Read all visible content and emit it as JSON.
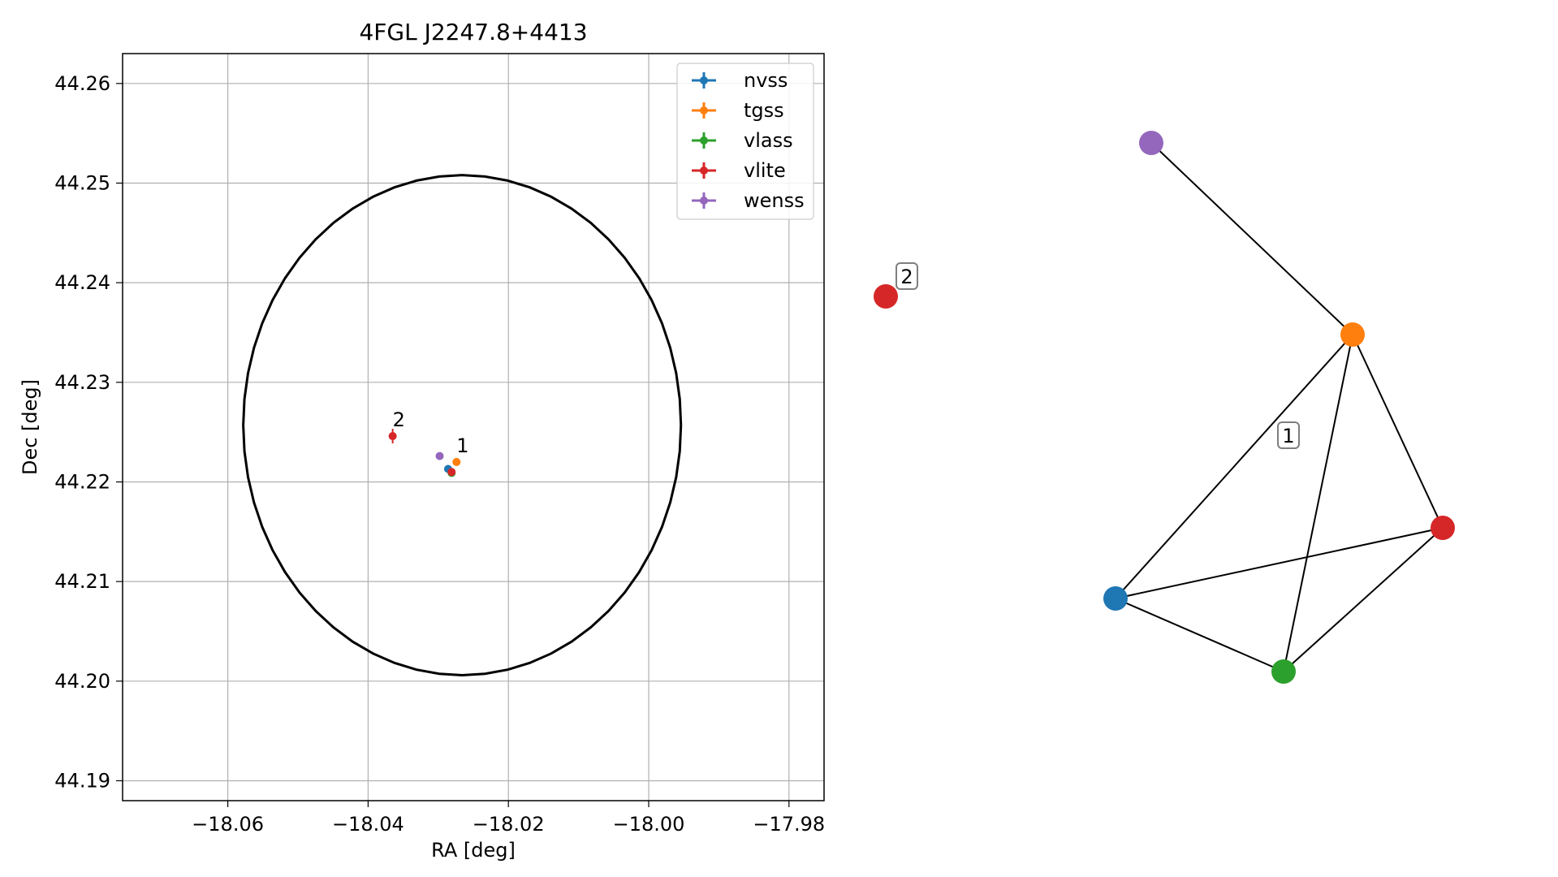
{
  "chart_data": [
    {
      "type": "scatter",
      "title": "4FGL J2247.8+4413",
      "xlabel": "RA [deg]",
      "ylabel": "Dec [deg]",
      "xlim": [
        -18.075,
        -17.975
      ],
      "ylim": [
        44.188,
        44.263
      ],
      "xticks": [
        -18.06,
        -18.04,
        -18.02,
        -18.0,
        -17.98
      ],
      "xtick_labels": [
        "−18.06",
        "−18.04",
        "−18.02",
        "−18.00",
        "−17.98"
      ],
      "yticks": [
        44.19,
        44.2,
        44.21,
        44.22,
        44.23,
        44.24,
        44.25,
        44.26
      ],
      "ytick_labels": [
        "44.19",
        "44.20",
        "44.21",
        "44.22",
        "44.23",
        "44.24",
        "44.25",
        "44.26"
      ],
      "grid": true,
      "legend_position": "top-right",
      "ellipse": {
        "center": [
          -18.0266,
          44.2257
        ],
        "semi_axis_ra": 0.0312,
        "semi_axis_dec": 0.0251
      },
      "series": [
        {
          "name": "nvss",
          "color": "#1f77b4",
          "points": [
            [
              -18.0286,
              44.2213
            ]
          ]
        },
        {
          "name": "tgss",
          "color": "#ff7f0e",
          "points": [
            [
              -18.0274,
              44.222
            ]
          ]
        },
        {
          "name": "vlass",
          "color": "#2ca02c",
          "points": [
            [
              -18.0281,
              44.2209
            ]
          ]
        },
        {
          "name": "vlite",
          "color": "#d62728",
          "points": [
            [
              -18.0281,
              44.221
            ],
            [
              -18.0365,
              44.2246
            ]
          ]
        },
        {
          "name": "wenss",
          "color": "#9467bd",
          "points": [
            [
              -18.0298,
              44.2226
            ]
          ]
        }
      ],
      "annotations": [
        {
          "text": "1",
          "x": -18.0274,
          "y": 44.222
        },
        {
          "text": "2",
          "x": -18.0365,
          "y": 44.2246
        }
      ]
    },
    {
      "type": "network",
      "nodes": [
        {
          "id": "wenss",
          "color": "#9467bd"
        },
        {
          "id": "tgss",
          "color": "#ff7f0e"
        },
        {
          "id": "vlite",
          "color": "#d62728"
        },
        {
          "id": "nvss",
          "color": "#1f77b4"
        },
        {
          "id": "vlass",
          "color": "#2ca02c"
        },
        {
          "id": "vlite_2",
          "color": "#d62728"
        }
      ],
      "edges": [
        [
          "wenss",
          "tgss"
        ],
        [
          "tgss",
          "nvss"
        ],
        [
          "tgss",
          "vlass"
        ],
        [
          "tgss",
          "vlite"
        ],
        [
          "nvss",
          "vlite"
        ],
        [
          "nvss",
          "vlass"
        ],
        [
          "vlass",
          "vlite"
        ]
      ],
      "group_labels": [
        "1",
        "2"
      ]
    }
  ]
}
